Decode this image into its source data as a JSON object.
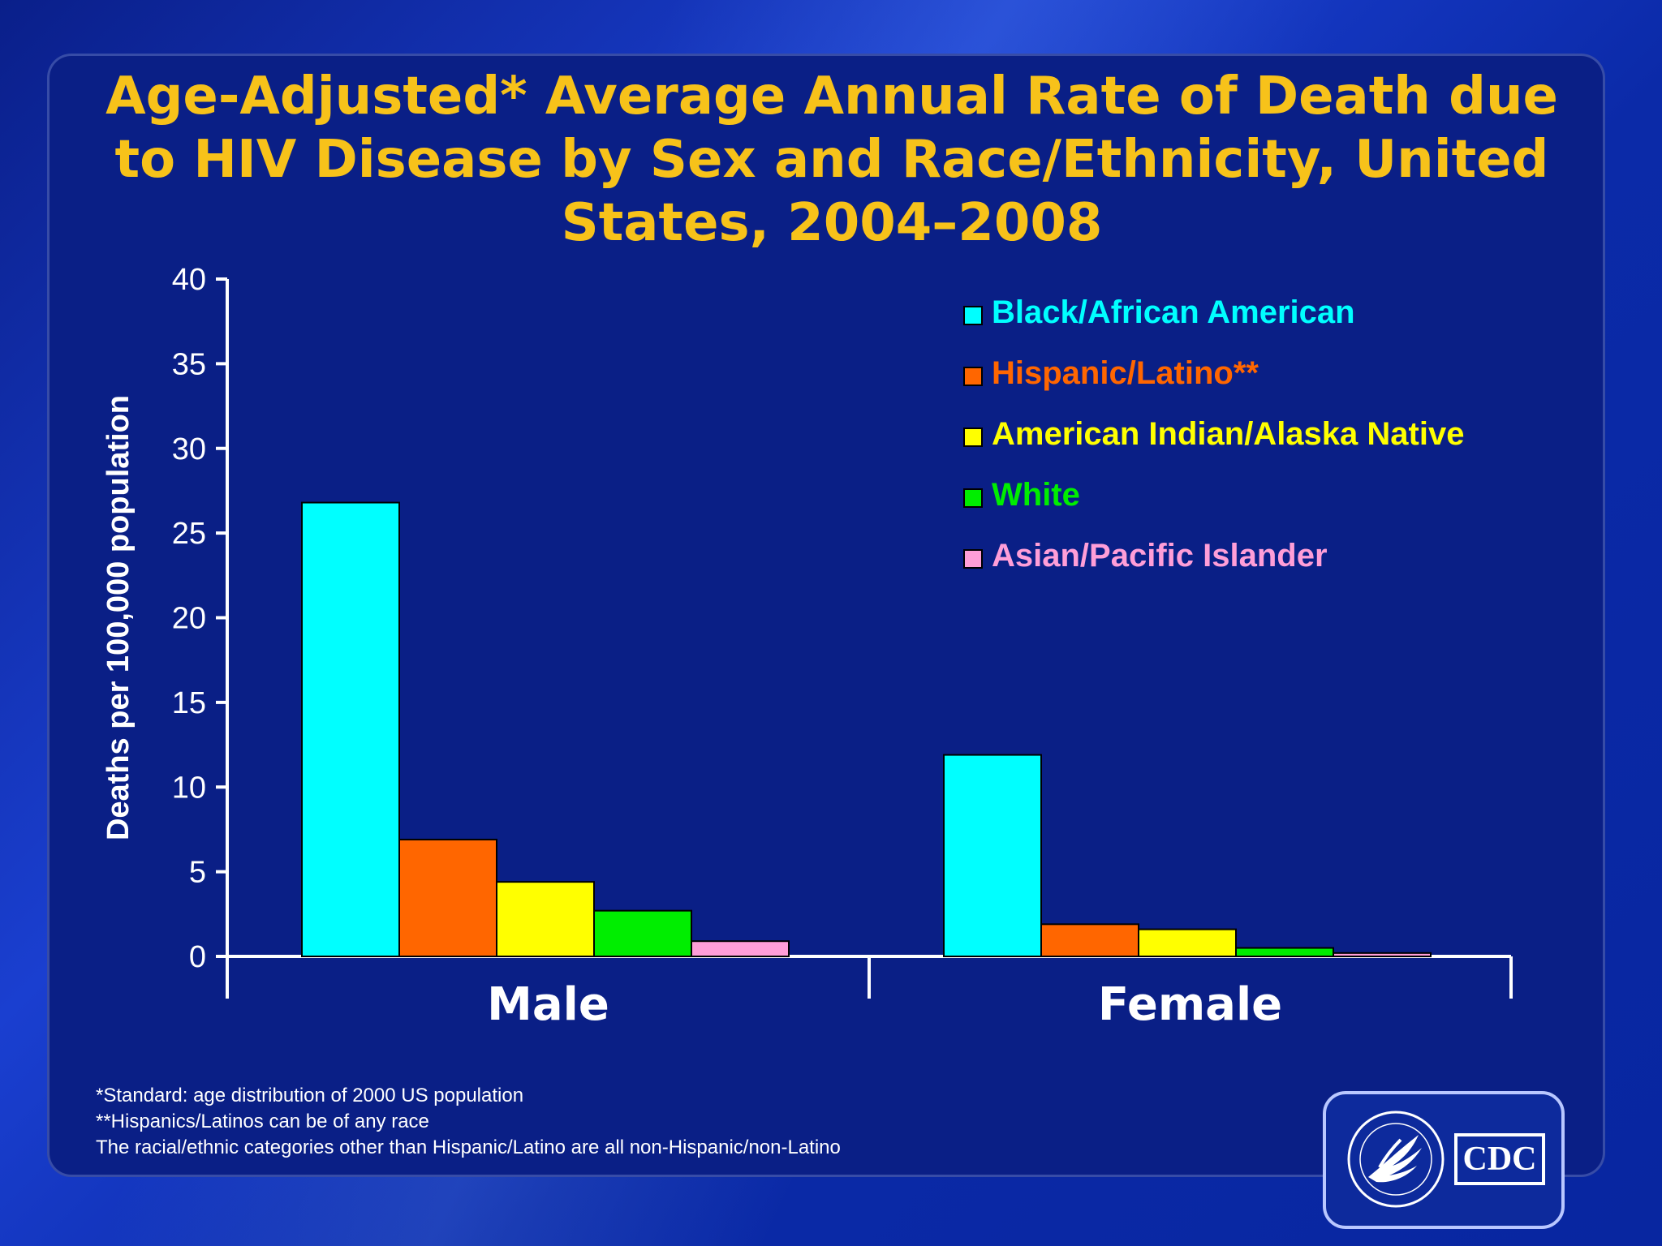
{
  "title": "Age-Adjusted* Average Annual Rate of Death due to HIV Disease by Sex and Race/Ethnicity, United States, 2004–2008",
  "colors": {
    "title": "#f7c21a",
    "axis": "#ffffff",
    "series": [
      "#00ffff",
      "#ff6600",
      "#ffff00",
      "#00ee00",
      "#ff9ed8"
    ]
  },
  "chart_data": {
    "type": "bar",
    "title": "Age-Adjusted* Average Annual Rate of Death due to HIV Disease by Sex and Race/Ethnicity, United States, 2004–2008",
    "xlabel": "",
    "ylabel": "Deaths per 100,000 population",
    "ylim": [
      0,
      40
    ],
    "yticks": [
      0,
      5,
      10,
      15,
      20,
      25,
      30,
      35,
      40
    ],
    "categories": [
      "Male",
      "Female"
    ],
    "legend_position": "top-right",
    "series": [
      {
        "name": "Black/African American",
        "color": "#00ffff",
        "values": [
          26.8,
          11.9
        ]
      },
      {
        "name": "Hispanic/Latino**",
        "color": "#ff6600",
        "values": [
          6.9,
          1.9
        ]
      },
      {
        "name": "American Indian/Alaska Native",
        "color": "#ffff00",
        "values": [
          4.4,
          1.6
        ]
      },
      {
        "name": "White",
        "color": "#00ee00",
        "values": [
          2.7,
          0.5
        ]
      },
      {
        "name": "Asian/Pacific Islander",
        "color": "#ff9ed8",
        "values": [
          0.9,
          0.2
        ]
      }
    ]
  },
  "footnotes": [
    "*Standard: age distribution  of 2000 US population",
    "**Hispanics/Latinos  can be of any race",
    "The racial/ethnic  categories other  than  Hispanic/Latino  are all  non-Hispanic/non-Latino"
  ],
  "logo": {
    "cdc_text": "CDC",
    "seal_icon": "hhs-eagle-seal-icon"
  }
}
